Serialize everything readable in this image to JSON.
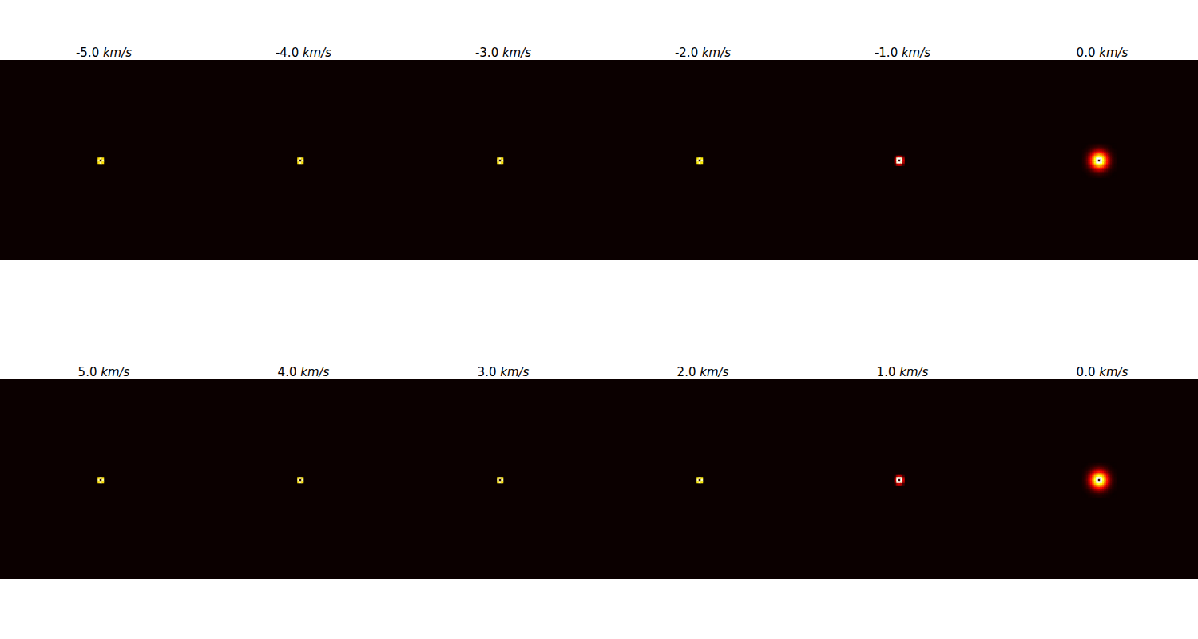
{
  "chart_data": [
    {
      "type": "heatmap",
      "title": "-5.0 km/s",
      "vlim": [
        0,
        100
      ],
      "tick_labels": false,
      "image": {
        "shape": [
          100,
          100
        ],
        "fill": 0,
        "origin": [
          49,
          49
        ],
        "values": [
          [
            70,
            90,
            70
          ],
          [
            90,
            5,
            90
          ],
          [
            70,
            90,
            70
          ]
        ]
      }
    },
    {
      "type": "heatmap",
      "title": "-4.0 km/s",
      "vlim": [
        0,
        100
      ],
      "tick_labels": false,
      "image": {
        "shape": [
          100,
          100
        ],
        "fill": 0,
        "origin": [
          49,
          49
        ],
        "values": [
          [
            70,
            90,
            70
          ],
          [
            90,
            5,
            90
          ],
          [
            70,
            90,
            70
          ]
        ]
      }
    },
    {
      "type": "heatmap",
      "title": "-3.0 km/s",
      "vlim": [
        0,
        100
      ],
      "tick_labels": false,
      "image": {
        "shape": [
          100,
          100
        ],
        "fill": 0,
        "origin": [
          49,
          49
        ],
        "values": [
          [
            70,
            90,
            70
          ],
          [
            90,
            5,
            90
          ],
          [
            70,
            90,
            70
          ]
        ]
      }
    },
    {
      "type": "heatmap",
      "title": "-2.0 km/s",
      "vlim": [
        0,
        100
      ],
      "tick_labels": false,
      "image": {
        "shape": [
          100,
          100
        ],
        "fill": 0,
        "origin": [
          49,
          49
        ],
        "values": [
          [
            72,
            92,
            72
          ],
          [
            92,
            5,
            92
          ],
          [
            72,
            92,
            72
          ]
        ]
      }
    },
    {
      "type": "heatmap",
      "title": "-1.0 km/s",
      "vlim": [
        0,
        100
      ],
      "tick_labels": false,
      "image": {
        "shape": [
          100,
          100
        ],
        "fill": 0,
        "origin": [
          48,
          48
        ],
        "values": [
          [
            8,
            25,
            30,
            25,
            8
          ],
          [
            25,
            95,
            100,
            95,
            25
          ],
          [
            30,
            100,
            5,
            100,
            30
          ],
          [
            25,
            95,
            100,
            95,
            25
          ],
          [
            8,
            25,
            30,
            25,
            8
          ]
        ]
      }
    },
    {
      "type": "heatmap",
      "title": "0.0 km/s",
      "vlim": [
        0,
        100
      ],
      "tick_labels": false,
      "image": {
        "shape": [
          100,
          100
        ],
        "fill": 0,
        "origin": [
          42,
          42
        ],
        "values": [
          [
            0,
            0,
            0,
            1,
            1,
            2,
            2,
            3,
            3,
            3,
            2,
            2,
            1,
            1,
            0,
            0,
            0
          ],
          [
            0,
            0,
            1,
            2,
            3,
            4,
            5,
            6,
            7,
            6,
            5,
            4,
            3,
            2,
            1,
            0,
            0
          ],
          [
            0,
            1,
            2,
            3,
            6,
            8,
            11,
            13,
            14,
            13,
            11,
            8,
            6,
            3,
            2,
            1,
            0
          ],
          [
            1,
            2,
            3,
            6,
            10,
            15,
            20,
            24,
            25,
            24,
            20,
            15,
            10,
            6,
            3,
            2,
            1
          ],
          [
            1,
            3,
            6,
            10,
            17,
            25,
            33,
            39,
            41,
            39,
            33,
            25,
            17,
            10,
            6,
            3,
            1
          ],
          [
            2,
            4,
            8,
            15,
            25,
            37,
            49,
            57,
            61,
            57,
            49,
            37,
            25,
            15,
            8,
            4,
            2
          ],
          [
            2,
            5,
            11,
            20,
            33,
            49,
            64,
            76,
            80,
            76,
            64,
            49,
            33,
            20,
            11,
            5,
            2
          ],
          [
            3,
            6,
            13,
            24,
            39,
            57,
            76,
            100,
            100,
            100,
            76,
            57,
            39,
            24,
            13,
            6,
            3
          ],
          [
            3,
            7,
            14,
            25,
            41,
            61,
            80,
            100,
            5,
            100,
            80,
            61,
            41,
            25,
            14,
            7,
            3
          ],
          [
            3,
            6,
            13,
            24,
            39,
            57,
            76,
            100,
            100,
            100,
            76,
            57,
            39,
            24,
            13,
            6,
            3
          ],
          [
            2,
            5,
            11,
            20,
            33,
            49,
            64,
            76,
            80,
            76,
            64,
            49,
            33,
            20,
            11,
            5,
            2
          ],
          [
            2,
            4,
            8,
            15,
            25,
            37,
            49,
            57,
            61,
            57,
            49,
            37,
            25,
            15,
            8,
            4,
            2
          ],
          [
            1,
            3,
            6,
            10,
            17,
            25,
            33,
            39,
            41,
            39,
            33,
            25,
            17,
            10,
            6,
            3,
            1
          ],
          [
            1,
            2,
            3,
            6,
            10,
            15,
            20,
            24,
            25,
            24,
            20,
            15,
            10,
            6,
            3,
            2,
            1
          ],
          [
            0,
            1,
            2,
            3,
            6,
            8,
            11,
            13,
            14,
            13,
            11,
            8,
            6,
            3,
            2,
            1,
            0
          ],
          [
            0,
            0,
            1,
            2,
            3,
            4,
            5,
            6,
            7,
            6,
            5,
            4,
            3,
            2,
            1,
            0,
            0
          ],
          [
            0,
            0,
            0,
            1,
            1,
            2,
            2,
            3,
            3,
            3,
            2,
            2,
            1,
            1,
            0,
            0,
            0
          ]
        ]
      }
    },
    {
      "type": "heatmap",
      "title": "5.0 km/s",
      "vlim": [
        0,
        100
      ],
      "tick_labels": false,
      "image": {
        "shape": [
          100,
          100
        ],
        "fill": 0,
        "origin": [
          49,
          49
        ],
        "values": [
          [
            70,
            90,
            70
          ],
          [
            90,
            5,
            90
          ],
          [
            70,
            90,
            70
          ]
        ]
      }
    },
    {
      "type": "heatmap",
      "title": "4.0 km/s",
      "vlim": [
        0,
        100
      ],
      "tick_labels": false,
      "image": {
        "shape": [
          100,
          100
        ],
        "fill": 0,
        "origin": [
          49,
          49
        ],
        "values": [
          [
            70,
            90,
            70
          ],
          [
            90,
            5,
            90
          ],
          [
            70,
            90,
            70
          ]
        ]
      }
    },
    {
      "type": "heatmap",
      "title": "3.0 km/s",
      "vlim": [
        0,
        100
      ],
      "tick_labels": false,
      "image": {
        "shape": [
          100,
          100
        ],
        "fill": 0,
        "origin": [
          49,
          49
        ],
        "values": [
          [
            70,
            90,
            70
          ],
          [
            90,
            5,
            90
          ],
          [
            70,
            90,
            70
          ]
        ]
      }
    },
    {
      "type": "heatmap",
      "title": "2.0 km/s",
      "vlim": [
        0,
        100
      ],
      "tick_labels": false,
      "image": {
        "shape": [
          100,
          100
        ],
        "fill": 0,
        "origin": [
          49,
          49
        ],
        "values": [
          [
            72,
            92,
            72
          ],
          [
            92,
            5,
            92
          ],
          [
            72,
            92,
            72
          ]
        ]
      }
    },
    {
      "type": "heatmap",
      "title": "1.0 km/s",
      "vlim": [
        0,
        100
      ],
      "tick_labels": false,
      "image": {
        "shape": [
          100,
          100
        ],
        "fill": 0,
        "origin": [
          48,
          48
        ],
        "values": [
          [
            8,
            25,
            30,
            25,
            8
          ],
          [
            25,
            95,
            100,
            95,
            25
          ],
          [
            30,
            100,
            5,
            100,
            30
          ],
          [
            25,
            95,
            100,
            95,
            25
          ],
          [
            8,
            25,
            30,
            25,
            8
          ]
        ]
      }
    },
    {
      "type": "heatmap",
      "title": "0.0 km/s",
      "vlim": [
        0,
        100
      ],
      "tick_labels": false,
      "image": {
        "shape": [
          100,
          100
        ],
        "fill": 0,
        "origin": [
          42,
          42
        ],
        "values": [
          [
            0,
            0,
            0,
            1,
            1,
            2,
            2,
            3,
            3,
            3,
            2,
            2,
            1,
            1,
            0,
            0,
            0
          ],
          [
            0,
            0,
            1,
            2,
            3,
            4,
            5,
            6,
            7,
            6,
            5,
            4,
            3,
            2,
            1,
            0,
            0
          ],
          [
            0,
            1,
            2,
            3,
            6,
            8,
            11,
            13,
            14,
            13,
            11,
            8,
            6,
            3,
            2,
            1,
            0
          ],
          [
            1,
            2,
            3,
            6,
            10,
            15,
            20,
            24,
            25,
            24,
            20,
            15,
            10,
            6,
            3,
            2,
            1
          ],
          [
            1,
            3,
            6,
            10,
            17,
            25,
            33,
            39,
            41,
            39,
            33,
            25,
            17,
            10,
            6,
            3,
            1
          ],
          [
            2,
            4,
            8,
            15,
            25,
            37,
            49,
            57,
            61,
            57,
            49,
            37,
            25,
            15,
            8,
            4,
            2
          ],
          [
            2,
            5,
            11,
            20,
            33,
            49,
            64,
            76,
            80,
            76,
            64,
            49,
            33,
            20,
            11,
            5,
            2
          ],
          [
            3,
            6,
            13,
            24,
            39,
            57,
            76,
            100,
            100,
            100,
            76,
            57,
            39,
            24,
            13,
            6,
            3
          ],
          [
            3,
            7,
            14,
            25,
            41,
            61,
            80,
            100,
            5,
            100,
            80,
            61,
            41,
            25,
            14,
            7,
            3
          ],
          [
            3,
            6,
            13,
            24,
            39,
            57,
            76,
            100,
            100,
            100,
            76,
            57,
            39,
            24,
            13,
            6,
            3
          ],
          [
            2,
            5,
            11,
            20,
            33,
            49,
            64,
            76,
            80,
            76,
            64,
            49,
            33,
            20,
            11,
            5,
            2
          ],
          [
            2,
            4,
            8,
            15,
            25,
            37,
            49,
            57,
            61,
            57,
            49,
            37,
            25,
            15,
            8,
            4,
            2
          ],
          [
            1,
            3,
            6,
            10,
            17,
            25,
            33,
            39,
            41,
            39,
            33,
            25,
            17,
            10,
            6,
            3,
            1
          ],
          [
            1,
            2,
            3,
            6,
            10,
            15,
            20,
            24,
            25,
            24,
            20,
            15,
            10,
            6,
            3,
            2,
            1
          ],
          [
            0,
            1,
            2,
            3,
            6,
            8,
            11,
            13,
            14,
            13,
            11,
            8,
            6,
            3,
            2,
            1,
            0
          ],
          [
            0,
            0,
            1,
            2,
            3,
            4,
            5,
            6,
            7,
            6,
            5,
            4,
            3,
            2,
            1,
            0,
            0
          ],
          [
            0,
            0,
            0,
            1,
            1,
            2,
            2,
            3,
            3,
            3,
            2,
            2,
            1,
            1,
            0,
            0,
            0
          ]
        ]
      }
    }
  ]
}
